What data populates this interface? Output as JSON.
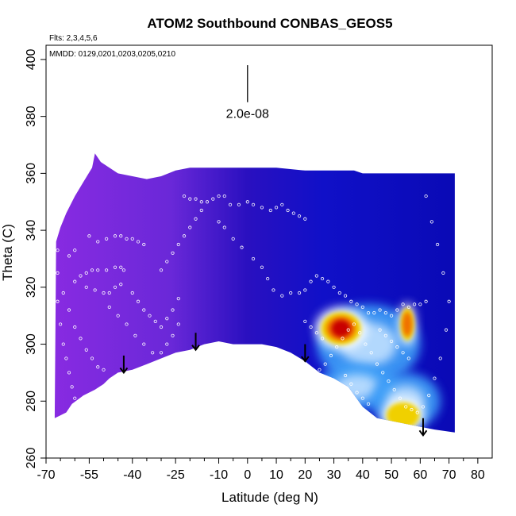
{
  "chart_data": {
    "type": "heatmap",
    "title": "ATOM2 Southbound CONBAS_GEOS5",
    "annotations": {
      "flights": "Flts: 2,3,4,5,6",
      "dates": "MMDD: 0129,0201,0203,0205,0210",
      "scale_label": "2.0e-08"
    },
    "xlabel": "Latitude (deg N)",
    "ylabel": "Theta (C)",
    "xlim": [
      -70,
      85
    ],
    "ylim": [
      260,
      405
    ],
    "x_ticks": [
      -70,
      -55,
      -40,
      -25,
      -10,
      0,
      10,
      20,
      30,
      40,
      50,
      60,
      70,
      80
    ],
    "x_minor_ticks": [
      -65,
      -60,
      -50,
      -45,
      -35,
      -30,
      -20,
      -15,
      -5,
      5,
      15,
      25,
      35,
      45,
      55,
      65,
      75
    ],
    "y_ticks": [
      260,
      280,
      300,
      320,
      340,
      360,
      380,
      400
    ],
    "colors": {
      "purple": "#8a2be2",
      "violet": "#6a28d8",
      "indigo": "#2a10c0",
      "blue": "#1010c8",
      "dark_blue": "#0808b0",
      "light_blue": "#40a0f8",
      "pale_blue": "#c8e4ff",
      "white": "#ffffff",
      "yellow": "#f0d000",
      "orange": "#f07000",
      "red": "#c80000",
      "points": "#ffffff"
    },
    "top_boundary": [
      [
        -66.5,
        336
      ],
      [
        -65,
        341
      ],
      [
        -63,
        346
      ],
      [
        -60,
        352
      ],
      [
        -57,
        357
      ],
      [
        -54,
        362
      ],
      [
        -53,
        367
      ],
      [
        -51,
        364
      ],
      [
        -45,
        360
      ],
      [
        -40,
        359
      ],
      [
        -35,
        358
      ],
      [
        -30,
        359
      ],
      [
        -25,
        361
      ],
      [
        -20,
        362
      ],
      [
        -10,
        362
      ],
      [
        0,
        362
      ],
      [
        10,
        362
      ],
      [
        20,
        361
      ],
      [
        30,
        361
      ],
      [
        37,
        361
      ],
      [
        40,
        360
      ],
      [
        50,
        360
      ],
      [
        60,
        360
      ],
      [
        68,
        360
      ],
      [
        72,
        360
      ]
    ],
    "bottom_boundary": [
      [
        72,
        269
      ],
      [
        65,
        270
      ],
      [
        60,
        271
      ],
      [
        55,
        272
      ],
      [
        50,
        273
      ],
      [
        45,
        274
      ],
      [
        40,
        278
      ],
      [
        35,
        285
      ],
      [
        30,
        288
      ],
      [
        25,
        290
      ],
      [
        20,
        294
      ],
      [
        15,
        297
      ],
      [
        10,
        299
      ],
      [
        5,
        300
      ],
      [
        0,
        300
      ],
      [
        -5,
        300
      ],
      [
        -10,
        301
      ],
      [
        -15,
        300
      ],
      [
        -20,
        298
      ],
      [
        -25,
        297
      ],
      [
        -30,
        295
      ],
      [
        -35,
        293
      ],
      [
        -40,
        291
      ],
      [
        -45,
        290
      ],
      [
        -48,
        288
      ],
      [
        -50,
        286
      ],
      [
        -53,
        284
      ],
      [
        -57,
        282
      ],
      [
        -61,
        279
      ],
      [
        -63,
        276
      ],
      [
        -65,
        275
      ],
      [
        -67,
        274
      ]
    ],
    "hotspots": [
      {
        "lat": 32.5,
        "theta": 305.5,
        "r_lat": 6,
        "r_theta": 5,
        "level": "red"
      },
      {
        "lat": 55.5,
        "theta": 307,
        "r_lat": 2,
        "r_theta": 5,
        "level": "orange"
      },
      {
        "lat": 54,
        "theta": 275,
        "r_lat": 5,
        "r_theta": 4,
        "level": "yellow"
      }
    ],
    "highlight_regions": [
      {
        "lat": 42,
        "theta": 300,
        "r_lat": 18,
        "r_theta": 14,
        "level": "light_blue"
      },
      {
        "lat": 38,
        "theta": 285,
        "r_lat": 14,
        "r_theta": 8,
        "level": "light_blue"
      },
      {
        "lat": 55,
        "theta": 280,
        "r_lat": 12,
        "r_theta": 10,
        "level": "light_blue"
      }
    ],
    "arrows": [
      {
        "lat": -43,
        "theta_top": 296,
        "theta_bottom": 290
      },
      {
        "lat": -18,
        "theta_top": 304,
        "theta_bottom": 298
      },
      {
        "lat": 20,
        "theta_top": 300,
        "theta_bottom": 294
      },
      {
        "lat": 61,
        "theta_top": 274,
        "theta_bottom": 268
      }
    ],
    "scale_bar": {
      "lat": 0,
      "theta_top": 398,
      "theta_bottom": 385
    },
    "track_points": [
      [
        -55,
        338
      ],
      [
        -52,
        336
      ],
      [
        -49,
        337
      ],
      [
        -46,
        338
      ],
      [
        -44,
        338
      ],
      [
        -42,
        337
      ],
      [
        -40,
        337
      ],
      [
        -38,
        336
      ],
      [
        -36,
        335
      ],
      [
        -60,
        322
      ],
      [
        -58,
        324
      ],
      [
        -56,
        325
      ],
      [
        -54,
        326
      ],
      [
        -52,
        326
      ],
      [
        -49,
        326
      ],
      [
        -46,
        327
      ],
      [
        -44,
        327
      ],
      [
        -43,
        326
      ],
      [
        -56,
        320
      ],
      [
        -53,
        319
      ],
      [
        -50,
        318
      ],
      [
        -48,
        318
      ],
      [
        -46,
        320
      ],
      [
        -44,
        321
      ],
      [
        -14,
        350
      ],
      [
        -12,
        351
      ],
      [
        -10,
        352
      ],
      [
        -8,
        352
      ],
      [
        -6,
        349
      ],
      [
        -3,
        349
      ],
      [
        0,
        350
      ],
      [
        2,
        349
      ],
      [
        5,
        348
      ],
      [
        8,
        347
      ],
      [
        10,
        348
      ],
      [
        12,
        349
      ],
      [
        14,
        347
      ],
      [
        16,
        346
      ],
      [
        18,
        345
      ],
      [
        20,
        344
      ],
      [
        -22,
        352
      ],
      [
        -20,
        351
      ],
      [
        -18,
        351
      ],
      [
        -16,
        350
      ],
      [
        -10,
        343
      ],
      [
        -8,
        341
      ],
      [
        -5,
        337
      ],
      [
        -2,
        334
      ],
      [
        2,
        330
      ],
      [
        5,
        327
      ],
      [
        7,
        323
      ],
      [
        9,
        319
      ],
      [
        12,
        317
      ],
      [
        15,
        318
      ],
      [
        18,
        318
      ],
      [
        20,
        319
      ],
      [
        22,
        322
      ],
      [
        24,
        324
      ],
      [
        26,
        323
      ],
      [
        28,
        322
      ],
      [
        30,
        320
      ],
      [
        32,
        318
      ],
      [
        34,
        317
      ],
      [
        36,
        315
      ],
      [
        38,
        314
      ],
      [
        40,
        313
      ],
      [
        42,
        311
      ],
      [
        44,
        311
      ],
      [
        46,
        312
      ],
      [
        48,
        311
      ],
      [
        50,
        310
      ],
      [
        52,
        312
      ],
      [
        54,
        314
      ],
      [
        56,
        313
      ],
      [
        58,
        314
      ],
      [
        60,
        314
      ],
      [
        62,
        315
      ],
      [
        -62,
        331
      ],
      [
        -60,
        333
      ],
      [
        -64,
        318
      ],
      [
        -62,
        312
      ],
      [
        -60,
        306
      ],
      [
        -58,
        302
      ],
      [
        -56,
        298
      ],
      [
        -54,
        295
      ],
      [
        -52,
        292
      ],
      [
        -50,
        291
      ],
      [
        -66,
        333
      ],
      [
        -66,
        325
      ],
      [
        -66,
        315
      ],
      [
        -65,
        307
      ],
      [
        -64,
        300
      ],
      [
        -63,
        295
      ],
      [
        -62,
        290
      ],
      [
        -61,
        285
      ],
      [
        -60,
        281
      ],
      [
        -48,
        313
      ],
      [
        -45,
        310
      ],
      [
        -42,
        307
      ],
      [
        -39,
        303
      ],
      [
        -36,
        300
      ],
      [
        -33,
        297
      ],
      [
        -30,
        297
      ],
      [
        -28,
        300
      ],
      [
        -26,
        303
      ],
      [
        -24,
        307
      ],
      [
        -30,
        326
      ],
      [
        -28,
        329
      ],
      [
        -26,
        332
      ],
      [
        -24,
        335
      ],
      [
        -22,
        338
      ],
      [
        -20,
        341
      ],
      [
        -18,
        344
      ],
      [
        -16,
        347
      ],
      [
        -40,
        318
      ],
      [
        -38,
        315
      ],
      [
        -36,
        312
      ],
      [
        -34,
        310
      ],
      [
        -32,
        308
      ],
      [
        -30,
        306
      ],
      [
        -28,
        309
      ],
      [
        -26,
        312
      ],
      [
        -24,
        316
      ],
      [
        25,
        291
      ],
      [
        27,
        293
      ],
      [
        29,
        296
      ],
      [
        31,
        299
      ],
      [
        33,
        302
      ],
      [
        35,
        305
      ],
      [
        37,
        307
      ],
      [
        39,
        304
      ],
      [
        41,
        300
      ],
      [
        43,
        297
      ],
      [
        45,
        293
      ],
      [
        47,
        290
      ],
      [
        49,
        287
      ],
      [
        51,
        284
      ],
      [
        53,
        281
      ],
      [
        55,
        278
      ],
      [
        57,
        277
      ],
      [
        59,
        276
      ],
      [
        61,
        278
      ],
      [
        63,
        282
      ],
      [
        65,
        288
      ],
      [
        67,
        295
      ],
      [
        69,
        305
      ],
      [
        70,
        315
      ],
      [
        68,
        325
      ],
      [
        66,
        335
      ],
      [
        64,
        343
      ],
      [
        62,
        352
      ],
      [
        20,
        308
      ],
      [
        22,
        306
      ],
      [
        24,
        304
      ],
      [
        26,
        302
      ],
      [
        46,
        305
      ],
      [
        48,
        303
      ],
      [
        50,
        301
      ],
      [
        52,
        299
      ],
      [
        54,
        297
      ],
      [
        56,
        295
      ],
      [
        28,
        280
      ],
      [
        30,
        283
      ],
      [
        32,
        286
      ],
      [
        34,
        289
      ],
      [
        36,
        286
      ],
      [
        38,
        283
      ],
      [
        40,
        281
      ],
      [
        42,
        279
      ]
    ]
  }
}
